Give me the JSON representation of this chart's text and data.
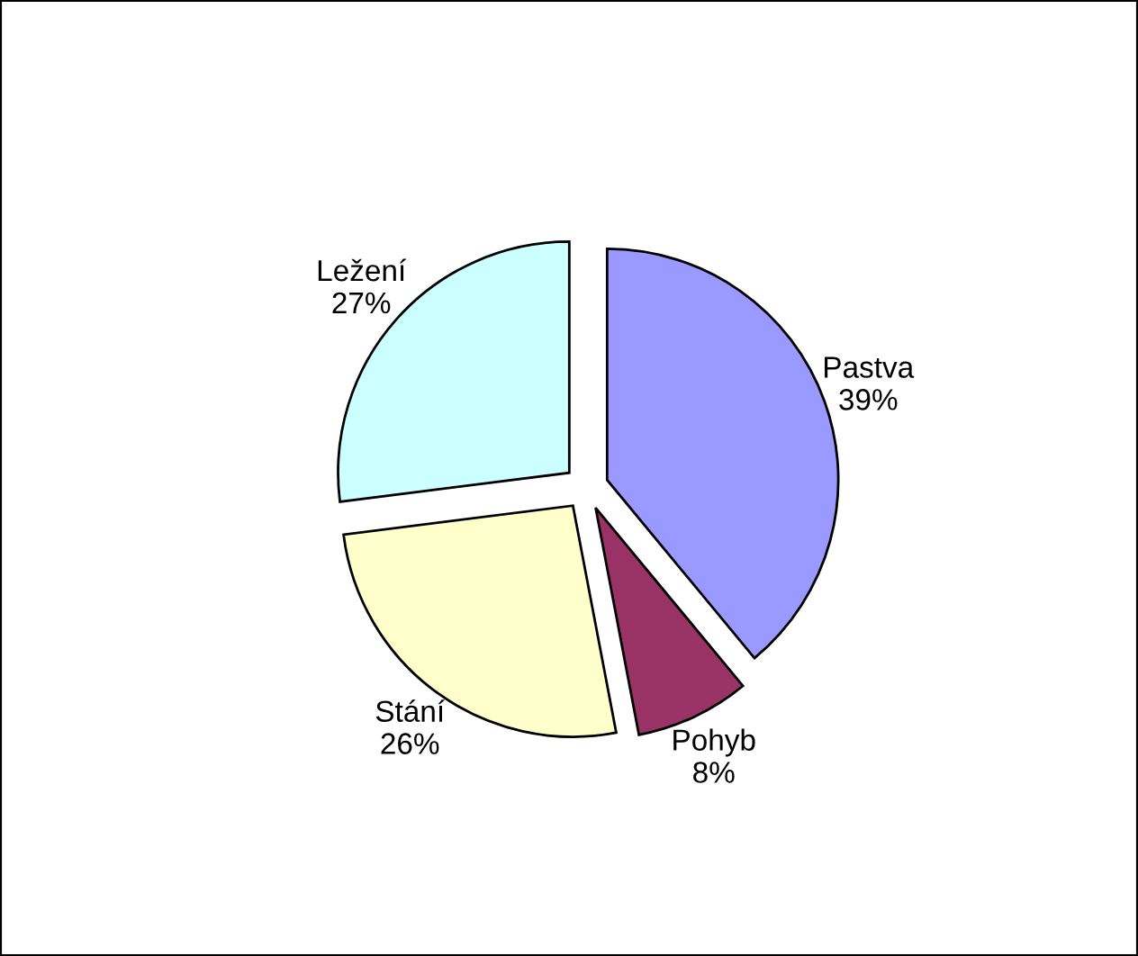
{
  "chart_data": {
    "type": "pie",
    "categories": [
      "Pastva",
      "Pohyb",
      "Stání",
      "Ležení"
    ],
    "values": [
      39,
      8,
      26,
      27
    ],
    "colors": [
      "#9999ff",
      "#993366",
      "#ffffcc",
      "#ccffff"
    ],
    "value_labels": [
      "39%",
      "8%",
      "26%",
      "27%"
    ],
    "legend": false
  }
}
